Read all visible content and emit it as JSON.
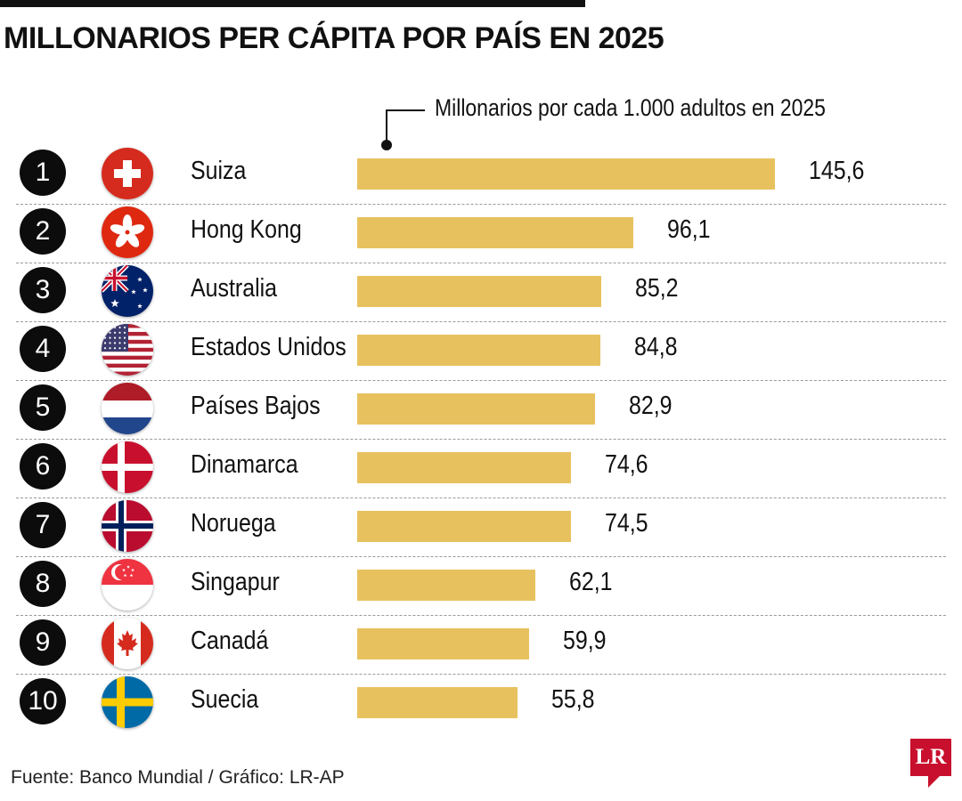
{
  "title": "MILLONARIOS PER CÁPITA POR PAÍS EN 2025",
  "source": "Fuente: Banco Mundial / Gráfico: LR-AP",
  "logo_text": "LR",
  "colors": {
    "bar": "#e8c15f",
    "rank_circle": "#0c0c0c",
    "logo": "#c8102e"
  },
  "chart_data": {
    "type": "bar",
    "orientation": "horizontal",
    "title": "MILLONARIOS PER CÁPITA POR PAÍS EN 2025",
    "series_label": "Millonarios por cada 1.000 adultos en 2025",
    "categories": [
      "Suiza",
      "Hong Kong",
      "Australia",
      "Estados Unidos",
      "Países Bajos",
      "Dinamarca",
      "Noruega",
      "Singapur",
      "Canadá",
      "Suecia"
    ],
    "ranks": [
      "1",
      "2",
      "3",
      "4",
      "5",
      "6",
      "7",
      "8",
      "9",
      "10"
    ],
    "flags": [
      "switzerland-flag",
      "hong-kong-flag",
      "australia-flag",
      "usa-flag",
      "netherlands-flag",
      "denmark-flag",
      "norway-flag",
      "singapore-flag",
      "canada-flag",
      "sweden-flag"
    ],
    "values": [
      145.6,
      96.1,
      85.2,
      84.8,
      82.9,
      74.6,
      74.5,
      62.1,
      59.9,
      55.8
    ],
    "value_labels": [
      "145,6",
      "96,1",
      "85,2",
      "84,8",
      "82,9",
      "74,6",
      "74,5",
      "62,1",
      "59,9",
      "55,8"
    ],
    "xlim": [
      0,
      145.6
    ],
    "grid": false,
    "legend": "none"
  }
}
